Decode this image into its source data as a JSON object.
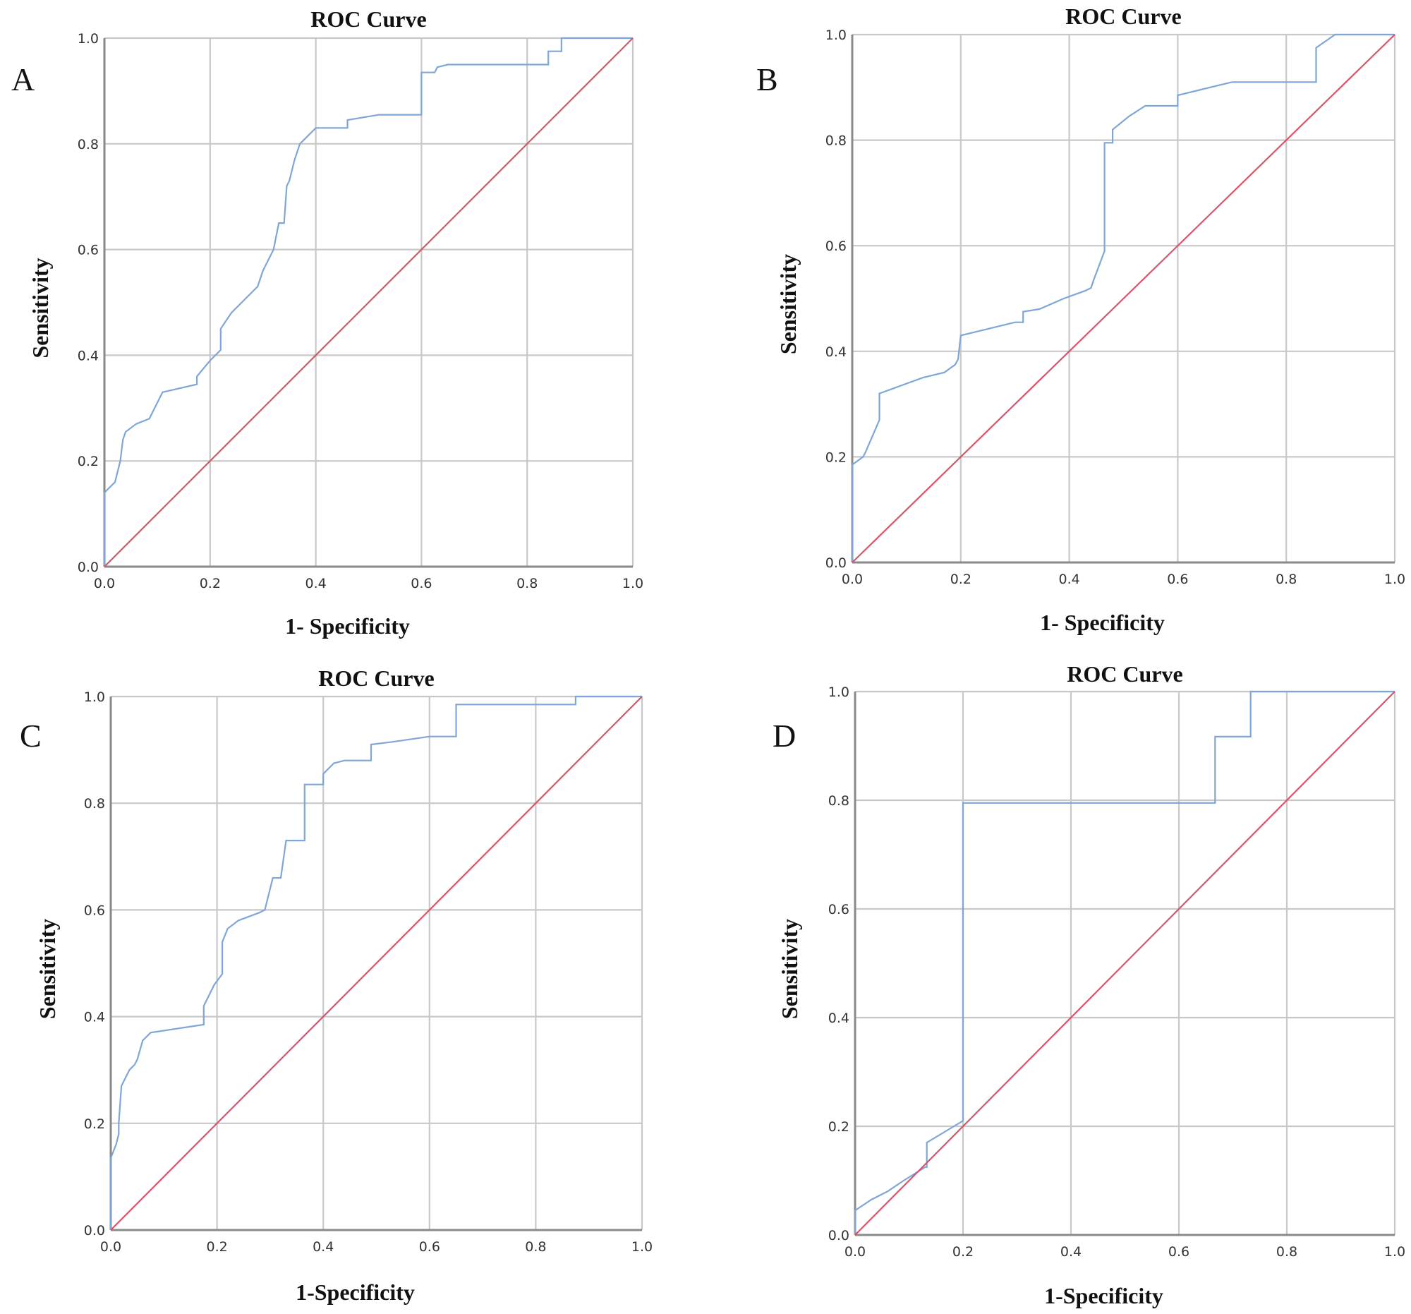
{
  "figure": {
    "panels": [
      "A",
      "B",
      "C",
      "D"
    ]
  },
  "colors": {
    "roc_curve": "#7ea6d8",
    "reference_line": "#d9546a",
    "grid": "#c8c8c8",
    "axis": "#8a8a8a"
  },
  "chart_data": [
    {
      "panel": "A",
      "type": "line",
      "title": "ROC Curve",
      "xlabel": "1- Specificity",
      "ylabel": "Sensitivity",
      "xlim": [
        0,
        1
      ],
      "ylim": [
        0,
        1
      ],
      "xticks": [
        "0.0",
        "0.2",
        "0.4",
        "0.6",
        "0.8",
        "1.0"
      ],
      "yticks": [
        "0.0",
        "0.2",
        "0.4",
        "0.6",
        "0.8",
        "1.0"
      ],
      "grid": true,
      "series": [
        {
          "name": "ROC",
          "x": [
            0,
            0,
            0.02,
            0.03,
            0.035,
            0.04,
            0.06,
            0.085,
            0.11,
            0.175,
            0.175,
            0.2,
            0.22,
            0.22,
            0.24,
            0.29,
            0.3,
            0.31,
            0.32,
            0.33,
            0.34,
            0.345,
            0.35,
            0.36,
            0.37,
            0.4,
            0.46,
            0.46,
            0.52,
            0.6,
            0.6,
            0.625,
            0.63,
            0.65,
            0.84,
            0.84,
            0.865,
            0.865,
            1.0
          ],
          "y": [
            0,
            0.14,
            0.16,
            0.2,
            0.24,
            0.255,
            0.27,
            0.28,
            0.33,
            0.345,
            0.36,
            0.39,
            0.41,
            0.45,
            0.48,
            0.53,
            0.56,
            0.58,
            0.6,
            0.65,
            0.65,
            0.72,
            0.73,
            0.77,
            0.8,
            0.83,
            0.83,
            0.845,
            0.855,
            0.855,
            0.935,
            0.935,
            0.945,
            0.95,
            0.95,
            0.975,
            0.975,
            1.0,
            1.0
          ]
        },
        {
          "name": "Reference Line",
          "x": [
            0,
            1
          ],
          "y": [
            0,
            1
          ]
        }
      ]
    },
    {
      "panel": "B",
      "type": "line",
      "title": "ROC Curve",
      "xlabel": "1- Specificity",
      "ylabel": "Sensitivity",
      "xlim": [
        0,
        1
      ],
      "ylim": [
        0,
        1
      ],
      "xticks": [
        "0.0",
        "0.2",
        "0.4",
        "0.6",
        "0.8",
        "1.0"
      ],
      "yticks": [
        "0.0",
        "0.2",
        "0.4",
        "0.6",
        "0.8",
        "1.0"
      ],
      "grid": true,
      "series": [
        {
          "name": "ROC",
          "x": [
            0,
            0,
            0.02,
            0.025,
            0.05,
            0.05,
            0.09,
            0.13,
            0.17,
            0.19,
            0.195,
            0.2,
            0.24,
            0.3,
            0.315,
            0.315,
            0.345,
            0.39,
            0.43,
            0.44,
            0.445,
            0.465,
            0.465,
            0.48,
            0.48,
            0.51,
            0.54,
            0.6,
            0.6,
            0.64,
            0.7,
            0.855,
            0.855,
            0.89,
            1.0
          ],
          "y": [
            0,
            0.185,
            0.2,
            0.21,
            0.27,
            0.32,
            0.335,
            0.35,
            0.36,
            0.375,
            0.385,
            0.43,
            0.44,
            0.455,
            0.455,
            0.475,
            0.48,
            0.5,
            0.515,
            0.52,
            0.535,
            0.59,
            0.795,
            0.795,
            0.82,
            0.845,
            0.865,
            0.865,
            0.885,
            0.895,
            0.91,
            0.91,
            0.975,
            1.0,
            1.0
          ]
        },
        {
          "name": "Reference Line",
          "x": [
            0,
            1
          ],
          "y": [
            0,
            1
          ]
        }
      ]
    },
    {
      "panel": "C",
      "type": "line",
      "title": "ROC Curve",
      "xlabel": "1-Specificity",
      "ylabel": "Sensitivity",
      "xlim": [
        0,
        1
      ],
      "ylim": [
        0,
        1
      ],
      "xticks": [
        "0.0",
        "0.2",
        "0.4",
        "0.6",
        "0.8",
        "1.0"
      ],
      "yticks": [
        "0.0",
        "0.2",
        "0.4",
        "0.6",
        "0.8",
        "1.0"
      ],
      "grid": true,
      "series": [
        {
          "name": "ROC",
          "x": [
            0,
            0,
            0.01,
            0.015,
            0.015,
            0.02,
            0.035,
            0.045,
            0.05,
            0.06,
            0.075,
            0.175,
            0.175,
            0.195,
            0.21,
            0.21,
            0.22,
            0.24,
            0.28,
            0.29,
            0.305,
            0.32,
            0.33,
            0.345,
            0.365,
            0.365,
            0.4,
            0.4,
            0.42,
            0.44,
            0.49,
            0.49,
            0.53,
            0.6,
            0.65,
            0.65,
            0.875,
            0.875,
            1.0
          ],
          "y": [
            0,
            0.135,
            0.16,
            0.18,
            0.2,
            0.27,
            0.3,
            0.31,
            0.32,
            0.355,
            0.37,
            0.385,
            0.42,
            0.46,
            0.48,
            0.54,
            0.565,
            0.58,
            0.595,
            0.6,
            0.66,
            0.66,
            0.73,
            0.73,
            0.73,
            0.835,
            0.835,
            0.855,
            0.875,
            0.88,
            0.88,
            0.91,
            0.915,
            0.925,
            0.925,
            0.985,
            0.985,
            1.0,
            1.0
          ]
        },
        {
          "name": "Reference Line",
          "x": [
            0,
            1
          ],
          "y": [
            0,
            1
          ]
        }
      ]
    },
    {
      "panel": "D",
      "type": "line",
      "title": "ROC Curve",
      "xlabel": "1-Specificity",
      "ylabel": "Sensitivity",
      "xlim": [
        0,
        1
      ],
      "ylim": [
        0,
        1
      ],
      "xticks": [
        "0.0",
        "0.2",
        "0.4",
        "0.6",
        "0.8",
        "1.0"
      ],
      "yticks": [
        "0.0",
        "0.2",
        "0.4",
        "0.6",
        "0.8",
        "1.0"
      ],
      "grid": true,
      "series": [
        {
          "name": "ROC",
          "x": [
            0,
            0,
            0.03,
            0.06,
            0.09,
            0.13,
            0.133,
            0.133,
            0.2,
            0.2,
            0.667,
            0.667,
            0.733,
            0.733,
            1.0
          ],
          "y": [
            0,
            0.045,
            0.065,
            0.08,
            0.1,
            0.125,
            0.125,
            0.17,
            0.21,
            0.795,
            0.795,
            0.917,
            0.917,
            1.0,
            1.0
          ]
        },
        {
          "name": "Reference Line",
          "x": [
            0,
            1
          ],
          "y": [
            0,
            1
          ]
        }
      ]
    }
  ]
}
